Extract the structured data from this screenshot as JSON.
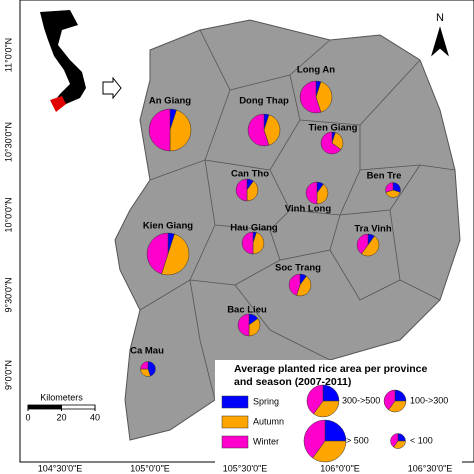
{
  "title": [
    "Average planted rice area per province",
    "and season (2007-2011)"
  ],
  "north": "N",
  "lat_labels": [
    "11°0'0\"N",
    "10°30'0\"N",
    "10°0'0\"N",
    "9°30'0\"N",
    "9°0'0\"N"
  ],
  "lon_labels": [
    "104°30'0\"E",
    "105°0'0\"E",
    "105°30'0\"E",
    "106°0'0\"E",
    "106°30'0\"E"
  ],
  "seasons": [
    {
      "name": "Spring",
      "color": "#0000ff"
    },
    {
      "name": "Autumn",
      "color": "#ffa500"
    },
    {
      "name": "Winter",
      "color": "#ff00cc"
    }
  ],
  "size_classes": [
    "300->500",
    "100->300",
    "> 500",
    "< 100"
  ],
  "scale": {
    "label": "Kilometers",
    "ticks": [
      0,
      20,
      40
    ]
  },
  "provinces": [
    {
      "name": "Long An",
      "class": "300->500",
      "values": [
        5,
        40,
        55
      ]
    },
    {
      "name": "An Giang",
      "class": "> 500",
      "values": [
        5,
        45,
        50
      ]
    },
    {
      "name": "Dong Thap",
      "class": "300->500",
      "values": [
        5,
        40,
        55
      ]
    },
    {
      "name": "Tien Giang",
      "class": "100->300",
      "values": [
        5,
        30,
        65
      ]
    },
    {
      "name": "Can Tho",
      "class": "100->300",
      "values": [
        10,
        40,
        50
      ]
    },
    {
      "name": "Ben Tre",
      "class": "< 100",
      "values": [
        30,
        40,
        30
      ]
    },
    {
      "name": "Vinh Long",
      "class": "100->300",
      "values": [
        10,
        40,
        50
      ]
    },
    {
      "name": "Kien Giang",
      "class": "> 500",
      "values": [
        5,
        50,
        45
      ]
    },
    {
      "name": "Hau Giang",
      "class": "100->300",
      "values": [
        5,
        45,
        50
      ]
    },
    {
      "name": "Tra Vinh",
      "class": "100->300",
      "values": [
        10,
        50,
        40
      ]
    },
    {
      "name": "Soc Trang",
      "class": "100->300",
      "values": [
        10,
        45,
        45
      ]
    },
    {
      "name": "Bac Lieu",
      "class": "100->300",
      "values": [
        15,
        35,
        50
      ]
    },
    {
      "name": "Ca Mau",
      "class": "< 100",
      "values": [
        45,
        30,
        25
      ]
    }
  ]
}
